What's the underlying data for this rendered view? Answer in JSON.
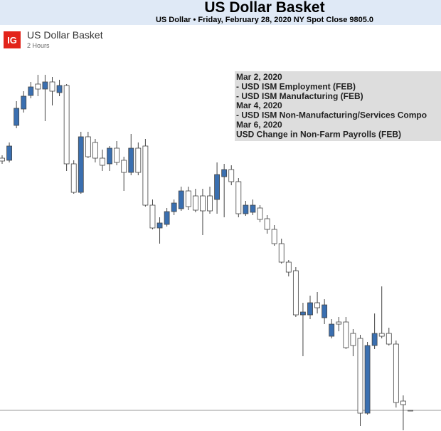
{
  "chart_data": {
    "type": "candlestick",
    "title": "US Dollar Basket",
    "subtitle": "US Dollar • Friday, February 28, 2020 NY Spot Close 9805.0",
    "logo": "IG",
    "instrument": "US Dollar Basket",
    "timeframe": "2 Hours",
    "annotations": [
      "Mar 2, 2020",
      "- USD ISM Employment (FEB)",
      "- USD ISM Manufacturing (FEB)",
      "Mar 4, 2020",
      "- USD ISM Non-Manufacturing/Services Compo",
      "Mar 6, 2020",
      "USD Change in Non-Farm Payrolls (FEB)"
    ],
    "ylim": [
      9798,
      9934
    ],
    "last_close": 9805,
    "up_color": "#3a6fb0",
    "down_color": "#ffffff",
    "open": [
      9893.5,
      9892.75,
      9905,
      9910.75,
      9915.5,
      9919.5,
      9917.75,
      9920.25,
      9916.5,
      9919,
      9891.5,
      9881.5,
      9901,
      9899,
      9893.5,
      9891.5,
      9897,
      9892.75,
      9888.5,
      9897,
      9897.75,
      9877,
      9869,
      9870.25,
      9874.75,
      9875.75,
      9882,
      9880.25,
      9880.25,
      9880.25,
      9879,
      9887,
      9889.5,
      9885.25,
      9874,
      9874.5,
      9876,
      9872.25,
      9868.5,
      9863.5,
      9857,
      9854,
      9838.5,
      9838.5,
      9842.75,
      9837.5,
      9831,
      9836,
      9836,
      9832,
      9830.25,
      9804,
      9827.75,
      9832,
      9832,
      9828.25,
      9808.25,
      9805
    ],
    "high": [
      9894.5,
      9899,
      9913.5,
      9917,
      9920.25,
      9922.75,
      9922.75,
      9922,
      9921,
      9919.5,
      9892.75,
      9902.75,
      9902.75,
      9900.25,
      9896.5,
      9897.75,
      9899.5,
      9894,
      9902,
      9899,
      9900.25,
      9879,
      9872.75,
      9876,
      9879,
      9883.5,
      9883.5,
      9882.75,
      9882.75,
      9883.5,
      9892,
      9891.5,
      9891,
      9886.5,
      9878.5,
      9879,
      9877,
      9873.5,
      9870,
      9865.25,
      9857.75,
      9855.25,
      9842.75,
      9845.25,
      9846.5,
      9844,
      9837,
      9837.75,
      9837.75,
      9833.5,
      9831.5,
      9829,
      9839,
      9848.5,
      9834,
      9829.5,
      9810.25,
      9805
    ],
    "low": [
      9891.5,
      9892,
      9904,
      9909.5,
      9914.5,
      9915.25,
      9906.5,
      9912,
      9915.25,
      9889,
      9881,
      9881,
      9893.5,
      9892,
      9889,
      9889,
      9891,
      9882,
      9887.5,
      9887.5,
      9876.5,
      9868.5,
      9863.5,
      9869.5,
      9873.5,
      9875,
      9875.25,
      9874.5,
      9866.5,
      9874,
      9874,
      9872.75,
      9884,
      9872.75,
      9873.25,
      9873.5,
      9871,
      9867,
      9862.75,
      9856.5,
      9852,
      9837.75,
      9824,
      9837,
      9839,
      9835.25,
      9830.25,
      9832.75,
      9826.5,
      9824,
      9799.5,
      9803.5,
      9826.5,
      9830.25,
      9827.75,
      9806,
      9798,
      9805
    ],
    "close": [
      9892.5,
      9897.75,
      9911,
      9915.25,
      9918.5,
      9917.75,
      9920.25,
      9917,
      9919,
      9891.5,
      9881.5,
      9901,
      9894,
      9893.5,
      9891,
      9897,
      9892,
      9888.5,
      9897,
      9888.5,
      9877,
      9869,
      9870.75,
      9874.75,
      9877.75,
      9882,
      9876.5,
      9875.25,
      9875,
      9875,
      9887.75,
      9889.5,
      9885.25,
      9874,
      9877,
      9877,
      9872,
      9868.5,
      9863.5,
      9857,
      9853.5,
      9838.5,
      9839.5,
      9842.75,
      9841,
      9842,
      9835.25,
      9835.25,
      9827,
      9827.75,
      9804,
      9827.75,
      9832,
      9831,
      9828.25,
      9807.75,
      9807,
      9805
    ]
  }
}
